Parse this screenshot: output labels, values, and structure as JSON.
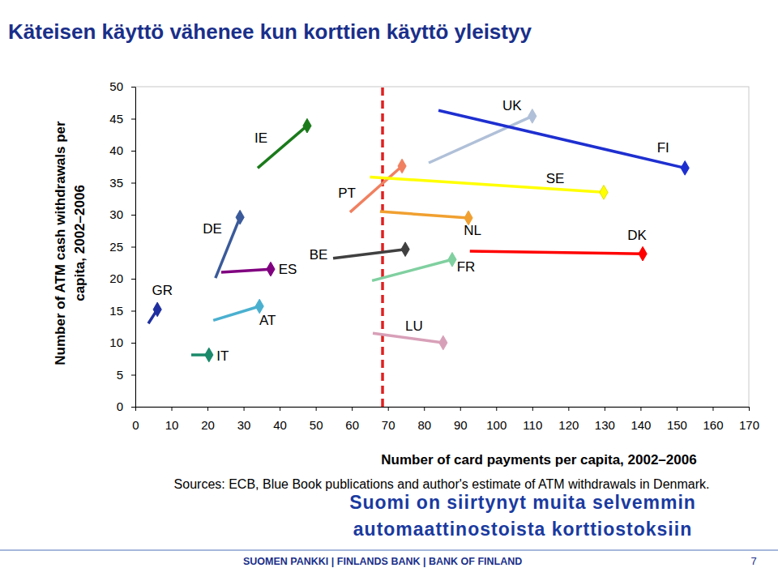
{
  "chart_data": {
    "type": "line",
    "title": "Käteisen käyttö vähenee kun korttien käyttö yleistyy",
    "xlabel": "Number of card payments per capita, 2002–2006",
    "ylabel": [
      "Number of ATM cash withdrawals per",
      "capita, 2002–2006"
    ],
    "source": "Sources: ECB, Blue Book publications and author's estimate of ATM withdrawals in Denmark.",
    "annotation": [
      "Suomi on siirtynyt muita selvemmin",
      "automaattinostoista korttiostoksiin"
    ],
    "footer": "SUOMEN PANKKI | FINLANDS BANK | BANK OF FINLAND",
    "page": "7",
    "xlim": [
      0,
      170
    ],
    "ylim": [
      0,
      50
    ],
    "xticks": [
      0,
      10,
      20,
      30,
      40,
      50,
      60,
      70,
      80,
      90,
      100,
      110,
      120,
      130,
      140,
      150,
      160,
      170
    ],
    "yticks": [
      0,
      5,
      10,
      15,
      20,
      25,
      30,
      35,
      40,
      45,
      50
    ],
    "grid": false,
    "marker": "diamond",
    "reference_x": 68.5,
    "series": [
      {
        "name": "GR",
        "color": "#1f2f9f",
        "x": [
          3.6,
          6.1
        ],
        "values": [
          13.0,
          15.2
        ]
      },
      {
        "name": "IT",
        "color": "#1a8a6a",
        "x": [
          15.5,
          20.4
        ],
        "values": [
          8.1,
          8.1
        ]
      },
      {
        "name": "DE",
        "color": "#3a5a9a",
        "x": [
          22.2,
          29.0
        ],
        "values": [
          20.1,
          29.6
        ]
      },
      {
        "name": "ES",
        "color": "#800080",
        "x": [
          23.8,
          37.5
        ],
        "values": [
          21.0,
          21.5
        ]
      },
      {
        "name": "AT",
        "color": "#4ab0d0",
        "x": [
          21.6,
          34.4
        ],
        "values": [
          13.5,
          15.7
        ]
      },
      {
        "name": "IE",
        "color": "#1a7a1a",
        "x": [
          33.9,
          47.6
        ],
        "values": [
          37.3,
          43.9
        ]
      },
      {
        "name": "BE",
        "color": "#404040",
        "x": [
          54.8,
          74.8
        ],
        "values": [
          23.2,
          24.6
        ]
      },
      {
        "name": "PT",
        "color": "#f08060",
        "x": [
          59.5,
          73.9
        ],
        "values": [
          30.4,
          37.6
        ]
      },
      {
        "name": "LU",
        "color": "#d8a0b8",
        "x": [
          65.8,
          85.3
        ],
        "values": [
          11.5,
          10.0
        ]
      },
      {
        "name": "FR",
        "color": "#80d0a0",
        "x": [
          65.6,
          87.8
        ],
        "values": [
          19.7,
          23.0
        ]
      },
      {
        "name": "NL",
        "color": "#f0a030",
        "x": [
          67.8,
          92.3
        ],
        "values": [
          30.5,
          29.5
        ]
      },
      {
        "name": "UK",
        "color": "#b0c0d8",
        "x": [
          81.3,
          110.0
        ],
        "values": [
          38.1,
          45.4
        ]
      },
      {
        "name": "SE",
        "color": "#ffff00",
        "x": [
          65.0,
          129.8
        ],
        "values": [
          35.9,
          33.5
        ]
      },
      {
        "name": "DK",
        "color": "#ff0000",
        "x": [
          92.7,
          140.6
        ],
        "values": [
          24.3,
          23.9
        ]
      },
      {
        "name": "FI",
        "color": "#1e2fd0",
        "x": [
          84.0,
          152.3
        ],
        "values": [
          46.3,
          37.3
        ]
      }
    ]
  }
}
